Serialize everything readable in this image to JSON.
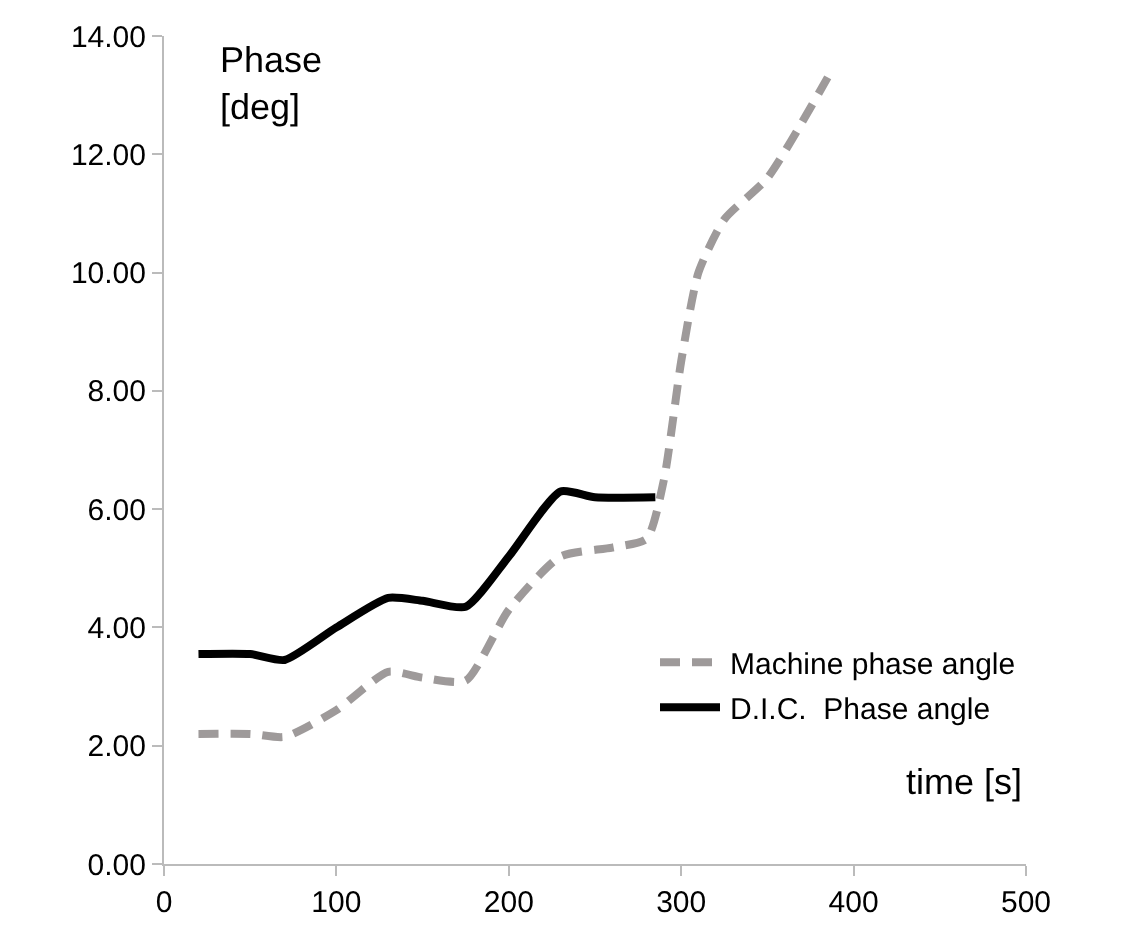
{
  "chart_data": {
    "type": "line",
    "xlabel": "time [s]",
    "ylabel": "Phase\n[deg]",
    "xlim": [
      0,
      500
    ],
    "xticks": [
      0,
      100,
      200,
      300,
      400,
      500
    ],
    "ylim": [
      0,
      14
    ],
    "yticks": [
      {
        "value": 0,
        "label": "0.00"
      },
      {
        "value": 2,
        "label": "2.00"
      },
      {
        "value": 4,
        "label": "4.00"
      },
      {
        "value": 6,
        "label": "6.00"
      },
      {
        "value": 8,
        "label": "8.00"
      },
      {
        "value": 10,
        "label": "10.00"
      },
      {
        "value": 12,
        "label": "12.00"
      },
      {
        "value": 14,
        "label": "14.00"
      }
    ],
    "grid": false,
    "legend": "bottom right",
    "marker": "none",
    "series": [
      {
        "name": "Machine phase angle",
        "color": "#9e9a9a",
        "line_style": "dashed",
        "x": [
          20,
          50,
          70,
          100,
          130,
          150,
          175,
          200,
          230,
          260,
          280,
          290,
          300,
          310,
          325,
          350,
          385
        ],
        "values": [
          2.2,
          2.2,
          2.15,
          2.6,
          3.25,
          3.15,
          3.1,
          4.3,
          5.2,
          5.35,
          5.5,
          6.5,
          8.5,
          10.0,
          10.9,
          11.6,
          13.3
        ]
      },
      {
        "name": "D.I.C.  Phase angle",
        "color": "#000000",
        "line_style": "solid",
        "x": [
          20,
          50,
          70,
          100,
          130,
          150,
          175,
          200,
          230,
          250,
          285
        ],
        "values": [
          3.55,
          3.55,
          3.45,
          4.0,
          4.5,
          4.45,
          4.35,
          5.2,
          6.3,
          6.2,
          6.2
        ]
      }
    ]
  }
}
